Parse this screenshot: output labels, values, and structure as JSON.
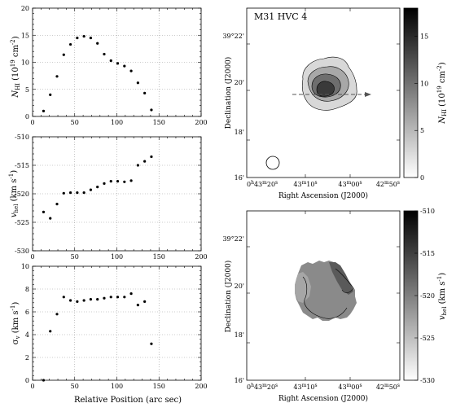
{
  "chart_data": [
    {
      "type": "scatter",
      "panel": "profile-top",
      "ylabel": "N_HI (10^19 cm^-2)",
      "xlim": [
        0,
        200
      ],
      "ylim": [
        0,
        20
      ],
      "xticks": [
        0,
        50,
        100,
        150,
        200
      ],
      "yticks": [
        0,
        5,
        10,
        15,
        20
      ],
      "x_tick_labels": [
        "0",
        "50",
        "100",
        "150",
        "200"
      ],
      "y_tick_labels": [
        "0",
        "5",
        "10",
        "15",
        "20"
      ],
      "grid": "dotted",
      "points": [
        [
          13,
          1.0
        ],
        [
          21,
          4.0
        ],
        [
          29,
          7.4
        ],
        [
          37,
          11.4
        ],
        [
          45,
          13.3
        ],
        [
          53,
          14.5
        ],
        [
          61,
          14.8
        ],
        [
          69,
          14.5
        ],
        [
          77,
          13.5
        ],
        [
          85,
          11.5
        ],
        [
          93,
          10.3
        ],
        [
          101,
          9.8
        ],
        [
          109,
          9.3
        ],
        [
          117,
          8.4
        ],
        [
          125,
          6.2
        ],
        [
          133,
          4.3
        ],
        [
          141,
          1.2
        ]
      ]
    },
    {
      "type": "scatter",
      "panel": "profile-middle",
      "ylabel": "v_hel (km s^-1)",
      "xlim": [
        0,
        200
      ],
      "ylim": [
        -530,
        -510
      ],
      "xticks": [
        0,
        50,
        100,
        150,
        200
      ],
      "yticks": [
        -530,
        -525,
        -520,
        -515,
        -510
      ],
      "x_tick_labels": [
        "0",
        "50",
        "100",
        "150",
        "200"
      ],
      "y_tick_labels": [
        "-530",
        "-525",
        "-520",
        "-515",
        "-510"
      ],
      "grid": "dotted",
      "points": [
        [
          13,
          -523.2
        ],
        [
          21,
          -524.3
        ],
        [
          29,
          -521.8
        ],
        [
          37,
          -519.9
        ],
        [
          45,
          -519.8
        ],
        [
          53,
          -519.8
        ],
        [
          61,
          -519.8
        ],
        [
          69,
          -519.3
        ],
        [
          77,
          -518.8
        ],
        [
          85,
          -518.2
        ],
        [
          93,
          -517.8
        ],
        [
          101,
          -517.8
        ],
        [
          109,
          -517.9
        ],
        [
          117,
          -517.7
        ],
        [
          125,
          -515.0
        ],
        [
          133,
          -514.3
        ],
        [
          141,
          -513.5
        ]
      ]
    },
    {
      "type": "scatter",
      "panel": "profile-bottom",
      "ylabel": "σ_v (km s^-1)",
      "xlabel": "Relative Position (arc sec)",
      "xlim": [
        0,
        200
      ],
      "ylim": [
        0,
        10
      ],
      "xticks": [
        0,
        50,
        100,
        150,
        200
      ],
      "yticks": [
        0,
        2,
        4,
        6,
        8,
        10
      ],
      "x_tick_labels": [
        "0",
        "50",
        "100",
        "150",
        "200"
      ],
      "y_tick_labels": [
        "0",
        "2",
        "4",
        "6",
        "8",
        "10"
      ],
      "grid": "dotted",
      "points": [
        [
          13,
          0.0
        ],
        [
          21,
          4.3
        ],
        [
          29,
          5.8
        ],
        [
          37,
          7.3
        ],
        [
          45,
          7.0
        ],
        [
          53,
          6.9
        ],
        [
          61,
          7.0
        ],
        [
          69,
          7.1
        ],
        [
          77,
          7.1
        ],
        [
          85,
          7.2
        ],
        [
          93,
          7.3
        ],
        [
          101,
          7.3
        ],
        [
          109,
          7.3
        ],
        [
          117,
          7.6
        ],
        [
          125,
          6.6
        ],
        [
          133,
          6.9
        ],
        [
          141,
          3.2
        ]
      ]
    },
    {
      "type": "heatmap",
      "panel": "map-column-density",
      "title": "M31 HVC 4",
      "xlabel": "Right Ascension (J2000)",
      "ylabel": "Declination (J2000)",
      "x_tick_labels": [
        "0h43m20s",
        "43m10s",
        "43m00s",
        "42m50s"
      ],
      "y_tick_labels": [
        "16'",
        "18'",
        "20'",
        "39°22'"
      ],
      "colorbar": {
        "label": "N_HI (10^19 cm^-2)",
        "ticks": [
          0,
          5,
          10,
          15
        ],
        "range": [
          0,
          18
        ],
        "colormap": "white-to-black"
      },
      "contours": true,
      "cut_arrow": "horizontal dashed arrow through cloud center"
    },
    {
      "type": "heatmap",
      "panel": "map-velocity",
      "xlabel": "Right Ascension (J2000)",
      "ylabel": "Declination (J2000)",
      "x_tick_labels": [
        "0h43m20s",
        "43m10s",
        "43m00s",
        "42m50s"
      ],
      "y_tick_labels": [
        "16'",
        "18'",
        "20'",
        "39°22'"
      ],
      "colorbar": {
        "label": "v_hel (km s^-1)",
        "ticks": [
          -530,
          -525,
          -520,
          -515,
          -510
        ],
        "range": [
          -530,
          -510
        ],
        "colormap": "white-to-black"
      }
    }
  ]
}
